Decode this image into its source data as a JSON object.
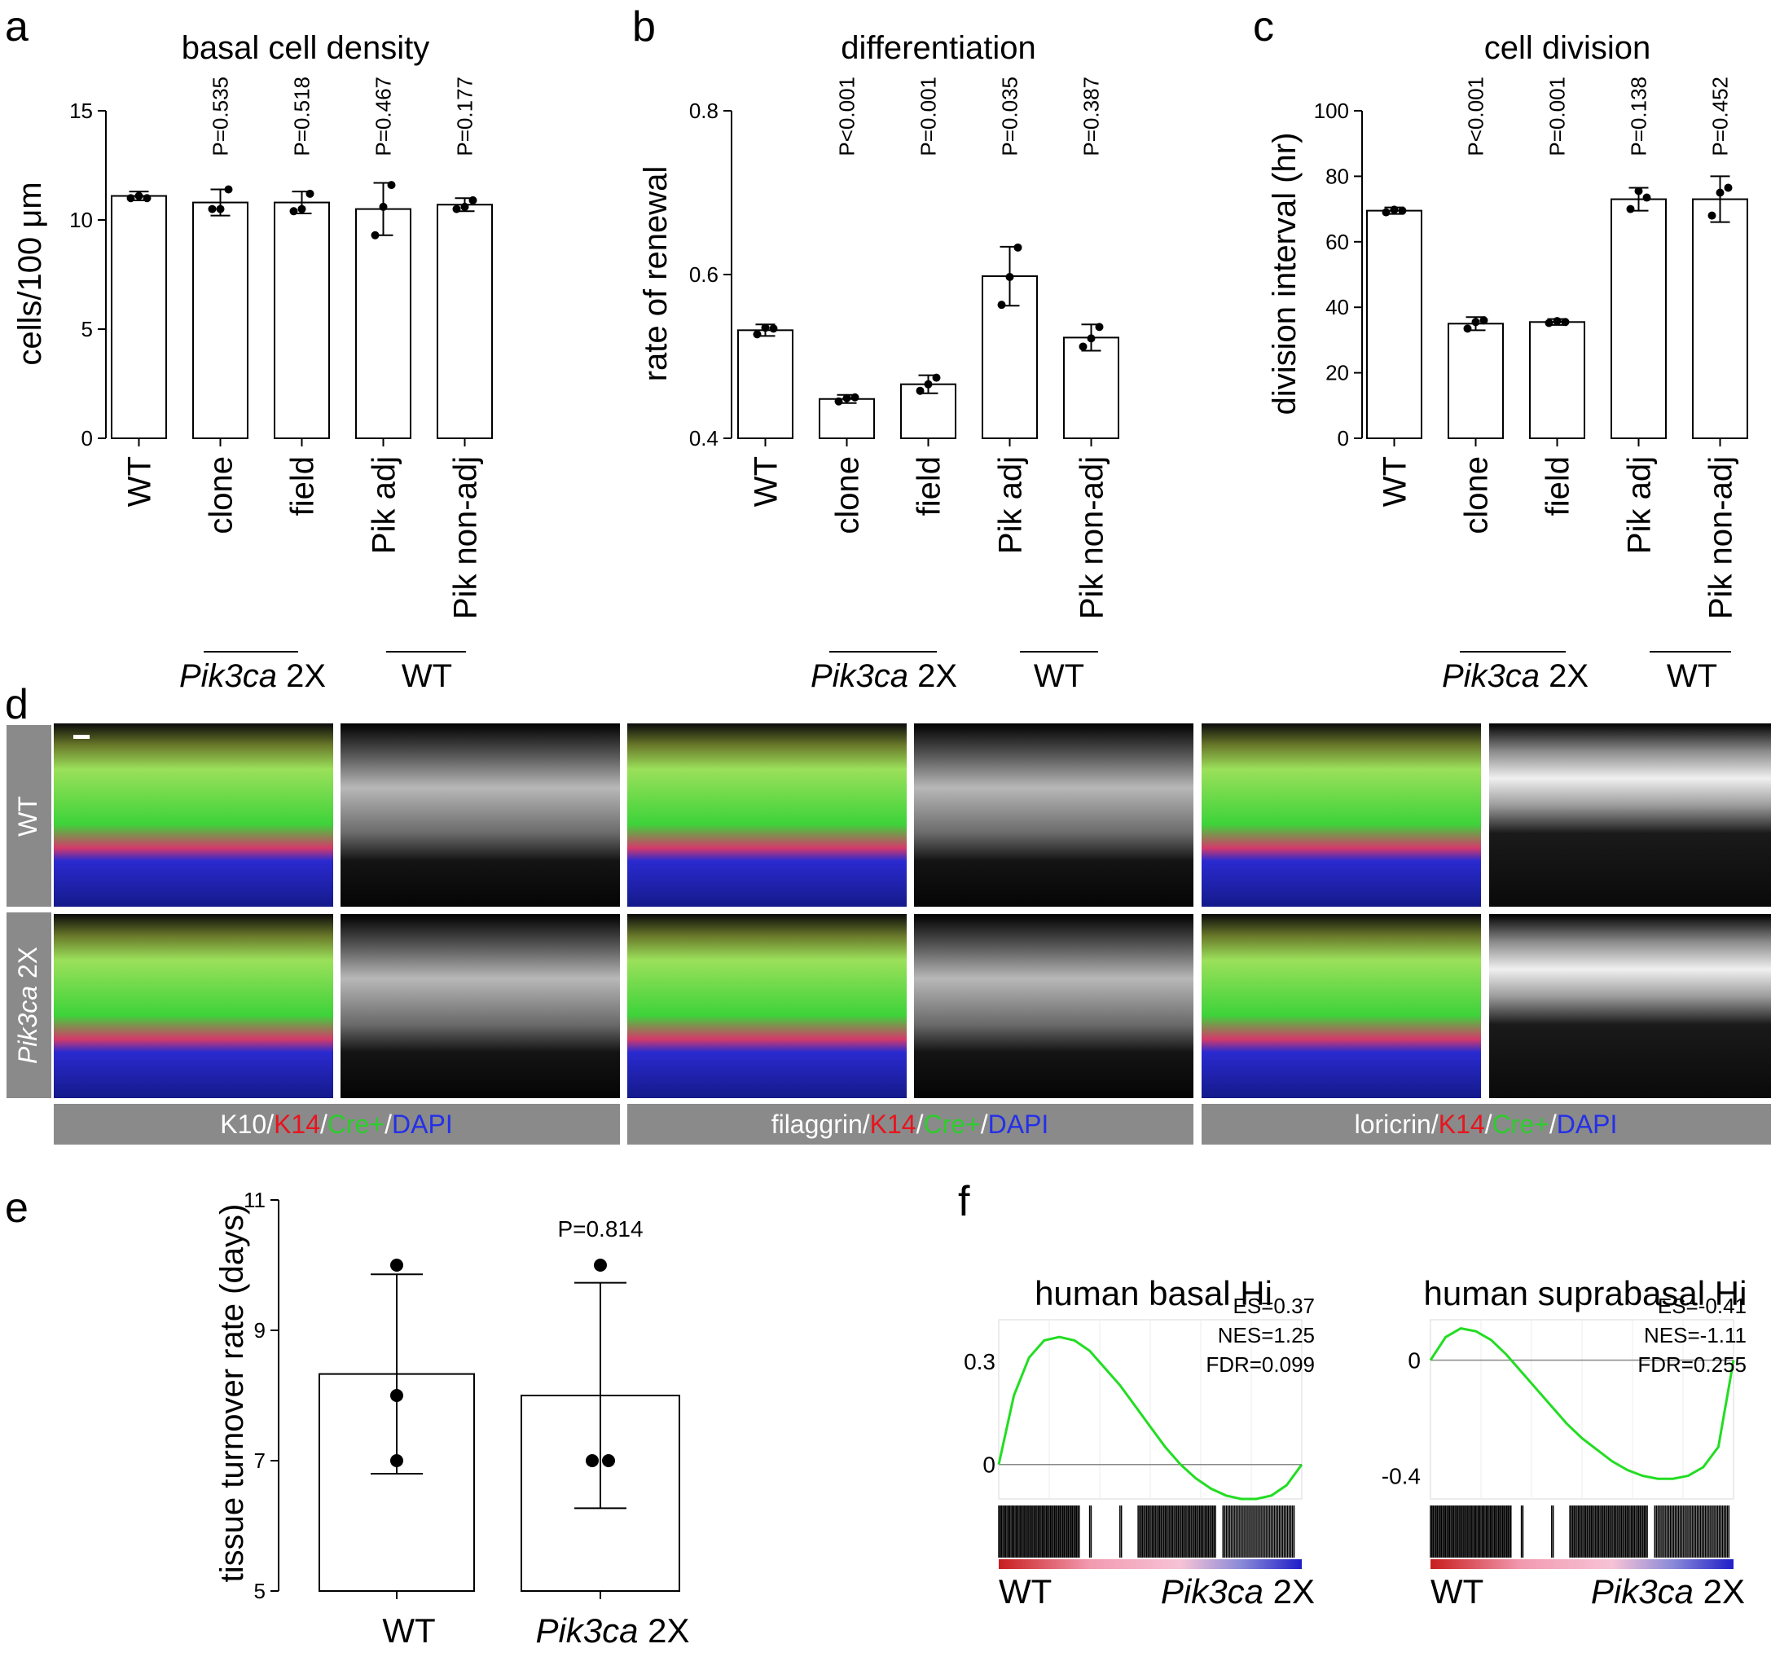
{
  "panel_letters": [
    "a",
    "b",
    "c",
    "d",
    "e",
    "f"
  ],
  "legend_colors": {
    "white": "#ffffff",
    "K14": "#e8141e",
    "Cre": "#2ecc2e",
    "DAPI": "#2430e8"
  },
  "chart_data": [
    {
      "type": "bar",
      "panel": "a",
      "title": "basal cell density",
      "ylabel": "cells/100 μm",
      "ylim": [
        0,
        15
      ],
      "yticks": [
        "0",
        "5",
        "10",
        "15"
      ],
      "categories": [
        "WT",
        "clone",
        "field",
        "Pik adj",
        "Pik non-adj"
      ],
      "values": [
        11.1,
        10.8,
        10.8,
        10.5,
        10.7
      ],
      "errors": [
        0.2,
        0.6,
        0.5,
        1.2,
        0.3
      ],
      "points": [
        [
          11.0,
          11.1,
          11.0
        ],
        [
          10.5,
          10.5,
          11.4
        ],
        [
          10.4,
          10.5,
          11.2
        ],
        [
          9.3,
          10.6,
          11.6
        ],
        [
          10.5,
          10.6,
          10.9
        ]
      ],
      "pvalues": [
        "",
        "P=0.535",
        "P=0.518",
        "P=0.467",
        "P=0.177"
      ],
      "groups": [
        {
          "label_italic": "Pik3ca",
          "label": " 2X"
        },
        {
          "label": "WT"
        }
      ]
    },
    {
      "type": "bar",
      "panel": "b",
      "title": "differentiation",
      "ylabel": "rate of renewal",
      "ylim": [
        0.4,
        0.8
      ],
      "yticks": [
        "0.4",
        "0.6",
        "0.8"
      ],
      "categories": [
        "WT",
        "clone",
        "field",
        "Pik adj",
        "Pik non-adj"
      ],
      "values": [
        0.532,
        0.448,
        0.466,
        0.598,
        0.523
      ],
      "errors": [
        0.007,
        0.005,
        0.011,
        0.036,
        0.016
      ],
      "points": [
        [
          0.527,
          0.535,
          0.534
        ],
        [
          0.445,
          0.449,
          0.45
        ],
        [
          0.458,
          0.466,
          0.474
        ],
        [
          0.563,
          0.597,
          0.633
        ],
        [
          0.512,
          0.522,
          0.536
        ]
      ],
      "pvalues": [
        "",
        "P<0.001",
        "P=0.001",
        "P=0.035",
        "P=0.387"
      ],
      "groups": [
        {
          "label_italic": "Pik3ca",
          "label": " 2X"
        },
        {
          "label": "WT"
        }
      ]
    },
    {
      "type": "bar",
      "panel": "c",
      "title": "cell division",
      "ylabel": "division interval (hr)",
      "ylim": [
        0,
        100
      ],
      "yticks": [
        "0",
        "20",
        "40",
        "60",
        "80",
        "100"
      ],
      "categories": [
        "WT",
        "clone",
        "field",
        "Pik adj",
        "Pik non-adj"
      ],
      "values": [
        69.5,
        35.0,
        35.5,
        73.0,
        73.0
      ],
      "errors": [
        1.0,
        2.0,
        0.9,
        3.5,
        7.0
      ],
      "points": [
        [
          69.0,
          69.8,
          69.5
        ],
        [
          33.5,
          35.5,
          36.0
        ],
        [
          35.2,
          35.8,
          35.5
        ],
        [
          70.0,
          75.5,
          73.5
        ],
        [
          68.0,
          75.0,
          76.5
        ]
      ],
      "pvalues": [
        "",
        "P<0.001",
        "P=0.001",
        "P=0.138",
        "P=0.452"
      ],
      "groups": [
        {
          "label_italic": "Pik3ca",
          "label": " 2X"
        },
        {
          "label": "WT"
        }
      ]
    },
    {
      "type": "bar",
      "panel": "e",
      "title": "",
      "ylabel": "tissue turnover rate (days)",
      "ylim": [
        5,
        11
      ],
      "yticks": [
        "5",
        "7",
        "9",
        "11"
      ],
      "categories": [
        "WT",
        "Pik3ca 2X"
      ],
      "values": [
        8.33,
        8.0
      ],
      "errors": [
        1.53,
        1.73
      ],
      "points": [
        [
          7.0,
          8.0,
          10.0
        ],
        [
          7.0,
          7.0,
          10.0
        ]
      ],
      "pvalues": [
        "",
        "P=0.814"
      ]
    },
    {
      "type": "line",
      "panel": "f",
      "title": "human basal Hi",
      "yticks": [
        "0",
        "0.3"
      ],
      "ylim": [
        -0.1,
        0.42
      ],
      "x": [
        0,
        0.05,
        0.1,
        0.15,
        0.2,
        0.25,
        0.3,
        0.35,
        0.4,
        0.45,
        0.5,
        0.55,
        0.6,
        0.65,
        0.7,
        0.75,
        0.8,
        0.85,
        0.9,
        0.95,
        1.0
      ],
      "y": [
        0.0,
        0.2,
        0.31,
        0.36,
        0.37,
        0.36,
        0.33,
        0.28,
        0.23,
        0.17,
        0.11,
        0.05,
        0.0,
        -0.04,
        -0.07,
        -0.09,
        -0.1,
        -0.1,
        -0.09,
        -0.06,
        0.0
      ],
      "stats": [
        "ES=0.37",
        "NES=1.25",
        "FDR=0.099"
      ],
      "xlabels": [
        {
          "label": "WT"
        },
        {
          "label_italic": "Pik3ca",
          "label": " 2X"
        }
      ],
      "line_color": "#22dd22"
    },
    {
      "type": "line",
      "panel": "f",
      "title": "human suprabasal Hi",
      "yticks": [
        "-0.4",
        "0"
      ],
      "ylim": [
        -0.48,
        0.14
      ],
      "x": [
        0,
        0.05,
        0.1,
        0.15,
        0.2,
        0.25,
        0.3,
        0.35,
        0.4,
        0.45,
        0.5,
        0.55,
        0.6,
        0.65,
        0.7,
        0.75,
        0.8,
        0.85,
        0.9,
        0.95,
        1.0
      ],
      "y": [
        0.0,
        0.08,
        0.11,
        0.1,
        0.07,
        0.02,
        -0.04,
        -0.1,
        -0.16,
        -0.22,
        -0.27,
        -0.31,
        -0.35,
        -0.38,
        -0.4,
        -0.41,
        -0.41,
        -0.4,
        -0.37,
        -0.3,
        0.0
      ],
      "stats": [
        "ES=-0.41",
        "NES=-1.11",
        "FDR=0.255"
      ],
      "xlabels": [
        {
          "label": "WT"
        },
        {
          "label_italic": "Pik3ca",
          "label": " 2X"
        }
      ],
      "line_color": "#22dd22"
    }
  ],
  "panel_d": {
    "rows": [
      {
        "label": "WT"
      },
      {
        "label_italic": "Pik3ca",
        "label": " 2X"
      }
    ],
    "stains": [
      {
        "prefix": "K10",
        "parts": [
          "/",
          "K14",
          "/",
          "Cre+",
          "/",
          "DAPI"
        ]
      },
      {
        "prefix": "filaggrin",
        "parts": [
          "/",
          "K14",
          "/",
          "Cre+",
          "/",
          "DAPI"
        ]
      },
      {
        "prefix": "loricrin",
        "parts": [
          "/",
          "K14",
          "/",
          "Cre+",
          "/",
          "DAPI"
        ]
      }
    ]
  }
}
